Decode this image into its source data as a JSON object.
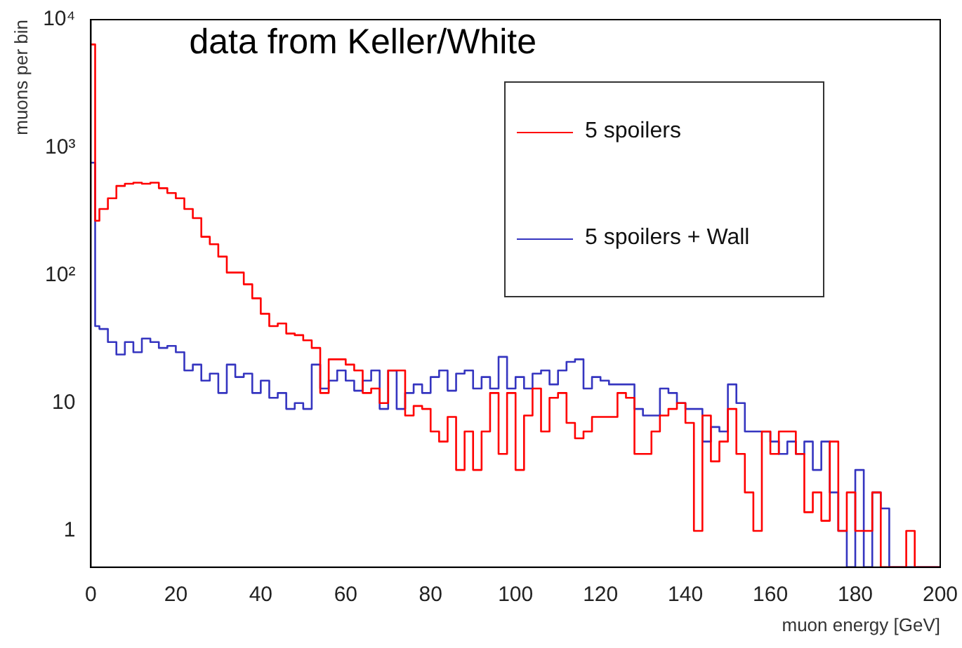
{
  "chart_data": {
    "type": "histogram",
    "title": "data from Keller/White",
    "xlabel": "muon energy [GeV]",
    "ylabel": "muons per bin",
    "bins": [
      0,
      1,
      2,
      4,
      6,
      8,
      10,
      12,
      14,
      16,
      18,
      20,
      22,
      24,
      26,
      28,
      30,
      32,
      34,
      36,
      38,
      40,
      42,
      44,
      46,
      48,
      50,
      52,
      54,
      56,
      58,
      60,
      62,
      64,
      66,
      68,
      70,
      72,
      74,
      76,
      78,
      80,
      82,
      84,
      86,
      88,
      90,
      92,
      94,
      96,
      98,
      100,
      102,
      104,
      106,
      108,
      110,
      112,
      114,
      116,
      118,
      120,
      122,
      124,
      126,
      128,
      130,
      132,
      134,
      136,
      138,
      140,
      142,
      144,
      146,
      148,
      150,
      152,
      154,
      156,
      158,
      160,
      162,
      164,
      166,
      168,
      170,
      172,
      174,
      176,
      178,
      180,
      182,
      184,
      186,
      188,
      190,
      192,
      194,
      196,
      198,
      200
    ],
    "series": [
      {
        "name": "5 spoilers",
        "color": "#ff0000",
        "values": [
          6400,
          267,
          330,
          400,
          500,
          520,
          530,
          520,
          530,
          480,
          440,
          400,
          330,
          280,
          200,
          175,
          140,
          105,
          105,
          85,
          66,
          50,
          40,
          42,
          35,
          34,
          31,
          27,
          12,
          22,
          22,
          20,
          18,
          12,
          13,
          10,
          18,
          18,
          8,
          9.5,
          9,
          6,
          5,
          7.8,
          3,
          6,
          3,
          6,
          12,
          4,
          12,
          3,
          8,
          13,
          6,
          11,
          12,
          7,
          5.3,
          6,
          7.8,
          7.8,
          7.8,
          12,
          11,
          4,
          4,
          6,
          8,
          9,
          10,
          7,
          1,
          8,
          3.5,
          5,
          9,
          4,
          2,
          1,
          6,
          4,
          6,
          6,
          4,
          1.4,
          2,
          1.2,
          5,
          1,
          2,
          1,
          1,
          2,
          null,
          null,
          null,
          1,
          null,
          null,
          null
        ]
      },
      {
        "name": "5 spoilers + Wall",
        "color": "#3535c0",
        "values": [
          760,
          40,
          38,
          30,
          24,
          30,
          25,
          32,
          30,
          27,
          28,
          25,
          18,
          20,
          15,
          17,
          12,
          20,
          16,
          17,
          12,
          15,
          11,
          12,
          9,
          10,
          9,
          20,
          13,
          15,
          18,
          15,
          12.5,
          15,
          18,
          9,
          18,
          9,
          12,
          14,
          12,
          16,
          18,
          12.5,
          17,
          18,
          13,
          16,
          13,
          23,
          13,
          16,
          13,
          17,
          18,
          14,
          18,
          21,
          22,
          13,
          16,
          15,
          14,
          14,
          14,
          9,
          8,
          8,
          13,
          12,
          10,
          9,
          9,
          5,
          6.5,
          6,
          14,
          10,
          6,
          6,
          6,
          5,
          4,
          5,
          4,
          5,
          3,
          5,
          2,
          1,
          null,
          3,
          null,
          2,
          1.5,
          null,
          null,
          null,
          null,
          null,
          null
        ]
      }
    ],
    "xlim": [
      0,
      200
    ],
    "xticks": [
      0,
      20,
      40,
      60,
      80,
      100,
      120,
      140,
      160,
      180,
      200
    ],
    "log": "y",
    "ylim": [
      0.52,
      10000
    ],
    "yticks": [
      1,
      10,
      {
        "value": 100,
        "label": "10²"
      },
      {
        "value": 1000,
        "label": "10³"
      },
      {
        "value": 10000,
        "label": "10⁴"
      }
    ],
    "grid": false,
    "legend": "top right",
    "line_style": "solid",
    "marker": "none"
  }
}
